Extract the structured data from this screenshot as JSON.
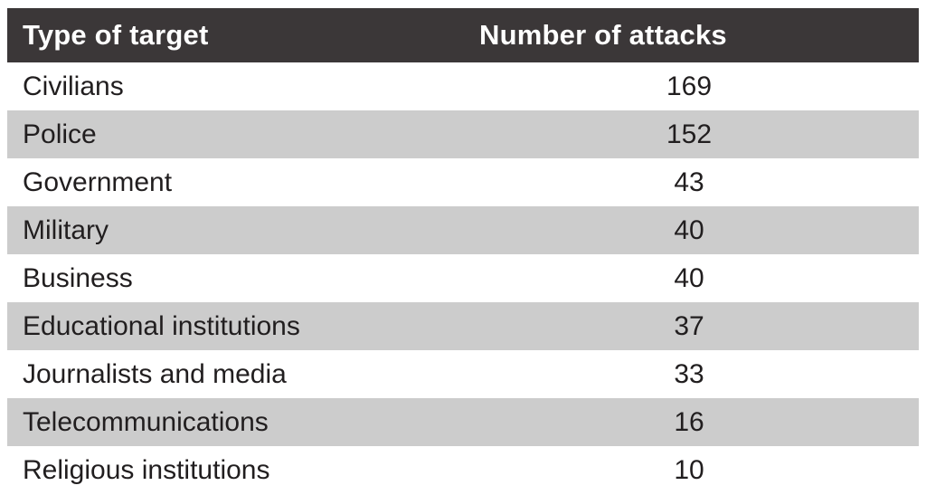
{
  "table": {
    "columns": {
      "target": "Type of target",
      "attacks": "Number of attacks"
    },
    "rows": [
      {
        "target": "Civilians",
        "attacks": "169"
      },
      {
        "target": "Police",
        "attacks": "152"
      },
      {
        "target": "Government",
        "attacks": "43"
      },
      {
        "target": "Military",
        "attacks": "40"
      },
      {
        "target": "Business",
        "attacks": "40"
      },
      {
        "target": "Educational institutions",
        "attacks": "37"
      },
      {
        "target": "Journalists and media",
        "attacks": "33"
      },
      {
        "target": "Telecommunications",
        "attacks": "16"
      },
      {
        "target": "Religious institutions",
        "attacks": "10"
      }
    ]
  },
  "colors": {
    "header_bg": "#3b3738",
    "header_text": "#ffffff",
    "stripe_bg": "#cccccc",
    "row_bg": "#ffffff",
    "text": "#211e1f"
  },
  "chart_data": {
    "type": "table",
    "columns": [
      "Type of target",
      "Number of attacks"
    ],
    "categories": [
      "Civilians",
      "Police",
      "Government",
      "Military",
      "Business",
      "Educational institutions",
      "Journalists and media",
      "Telecommunications",
      "Religious institutions"
    ],
    "values": [
      169,
      152,
      43,
      40,
      40,
      37,
      33,
      16,
      10
    ],
    "title": "",
    "layout": "striped rows, dark header, counts centered"
  }
}
